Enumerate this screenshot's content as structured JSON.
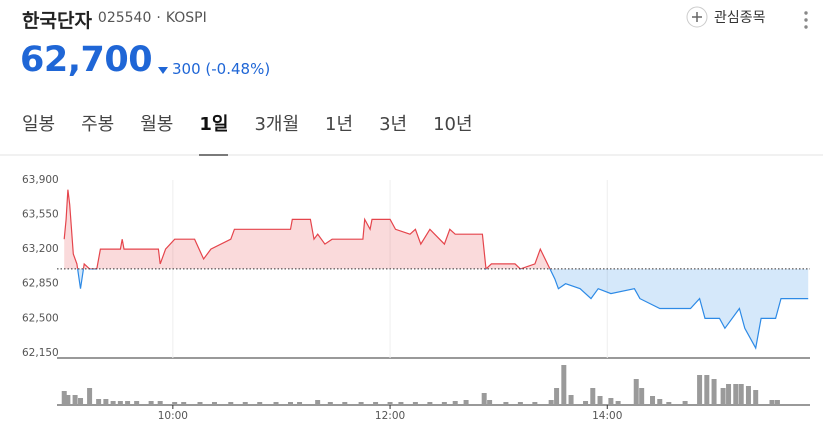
{
  "header": {
    "name": "한국단자",
    "code": "025540",
    "separator": "·",
    "market": "KOSPI",
    "price": "62,700",
    "change": "300",
    "change_pct": "(-0.48%)",
    "watch": "관심종목"
  },
  "tabs": [
    "일봉",
    "주봉",
    "월봉",
    "1일",
    "3개월",
    "1년",
    "3년",
    "10년"
  ],
  "selected_tab": 3,
  "chart_data": {
    "type": "line",
    "x": [
      "09:00",
      "09:01",
      "09:02",
      "09:03",
      "09:05",
      "09:07",
      "09:09",
      "09:11",
      "09:14",
      "09:18",
      "09:20",
      "09:31",
      "09:32",
      "09:33",
      "09:52",
      "09:53",
      "09:56",
      "10:01",
      "10:12",
      "10:17",
      "10:21",
      "10:32",
      "10:34",
      "11:05",
      "11:06",
      "11:16",
      "11:18",
      "11:20",
      "11:24",
      "11:28",
      "11:45",
      "11:46",
      "11:49",
      "11:50",
      "12:00",
      "12:03",
      "12:11",
      "12:14",
      "12:17",
      "12:22",
      "12:30",
      "12:33",
      "12:36",
      "12:51",
      "12:53",
      "12:56",
      "13:09",
      "13:12",
      "13:20",
      "13:23",
      "13:27",
      "13:31",
      "13:33",
      "13:37",
      "13:45",
      "13:51",
      "13:55",
      "14:02",
      "14:15",
      "14:18",
      "14:29",
      "14:46",
      "14:51",
      "14:54",
      "15:02",
      "15:05",
      "15:13",
      "15:16",
      "15:22",
      "15:25",
      "15:33",
      "15:36",
      "15:51"
    ],
    "values": [
      63300,
      63500,
      63800,
      63650,
      63150,
      63050,
      62800,
      63050,
      63000,
      63000,
      63200,
      63200,
      63300,
      63200,
      63200,
      63050,
      63200,
      63300,
      63300,
      63100,
      63200,
      63300,
      63400,
      63400,
      63500,
      63500,
      63300,
      63350,
      63250,
      63300,
      63300,
      63500,
      63400,
      63500,
      63500,
      63400,
      63350,
      63400,
      63250,
      63400,
      63250,
      63400,
      63350,
      63350,
      63000,
      63050,
      63050,
      63000,
      63050,
      63200,
      63050,
      62900,
      62800,
      62850,
      62800,
      62700,
      62800,
      62750,
      62800,
      62700,
      62600,
      62600,
      62700,
      62500,
      62500,
      62400,
      62600,
      62400,
      62200,
      62500,
      62500,
      62700,
      62700
    ],
    "baseline": 63000,
    "up_color": "#e5454c",
    "down_color": "#2d8ae6",
    "xlim": [
      "08:56",
      "15:52"
    ],
    "xticks": [
      "10:00",
      "12:00",
      "14:00"
    ],
    "xgrid": true,
    "ylim": [
      62100,
      64150
    ],
    "yticks": [
      {
        "value": 63900,
        "label": "63,900"
      },
      {
        "value": 63550,
        "label": "63,550"
      },
      {
        "value": 63200,
        "label": "63,200"
      },
      {
        "value": 62850,
        "label": "62,850"
      },
      {
        "value": 62500,
        "label": "62,500"
      },
      {
        "value": 62150,
        "label": "62,150"
      }
    ],
    "volume": {
      "color": "#9a9a9a",
      "ylim": [
        0,
        45
      ],
      "x": [
        "09:00",
        "09:02",
        "09:06",
        "09:09",
        "09:14",
        "09:19",
        "09:23",
        "09:27",
        "09:31",
        "09:35",
        "09:40",
        "09:48",
        "09:53",
        "10:01",
        "10:06",
        "10:15",
        "10:23",
        "10:32",
        "10:40",
        "10:48",
        "10:57",
        "11:05",
        "11:10",
        "11:20",
        "11:27",
        "11:35",
        "11:44",
        "11:52",
        "12:00",
        "12:06",
        "12:14",
        "12:22",
        "12:30",
        "12:36",
        "12:42",
        "12:52",
        "12:55",
        "13:04",
        "13:12",
        "13:20",
        "13:29",
        "13:32",
        "13:36",
        "13:40",
        "13:48",
        "13:52",
        "13:56",
        "14:02",
        "14:06",
        "14:16",
        "14:19",
        "14:25",
        "14:29",
        "14:34",
        "14:43",
        "14:51",
        "14:55",
        "14:59",
        "15:04",
        "15:07",
        "15:11",
        "15:14",
        "15:18",
        "15:22",
        "15:31",
        "15:34"
      ],
      "values": [
        14,
        10,
        10,
        7,
        17,
        6,
        6,
        4,
        4,
        4,
        4,
        4,
        4,
        3,
        3,
        3,
        3,
        3,
        3,
        3,
        3,
        3,
        3,
        5,
        3,
        3,
        3,
        3,
        3,
        3,
        3,
        3,
        3,
        4,
        5,
        12,
        5,
        3,
        3,
        3,
        5,
        17,
        40,
        10,
        4,
        17,
        9,
        7,
        4,
        26,
        17,
        9,
        6,
        3,
        4,
        30,
        30,
        26,
        17,
        21,
        21,
        21,
        19,
        15,
        5,
        5
      ]
    }
  }
}
